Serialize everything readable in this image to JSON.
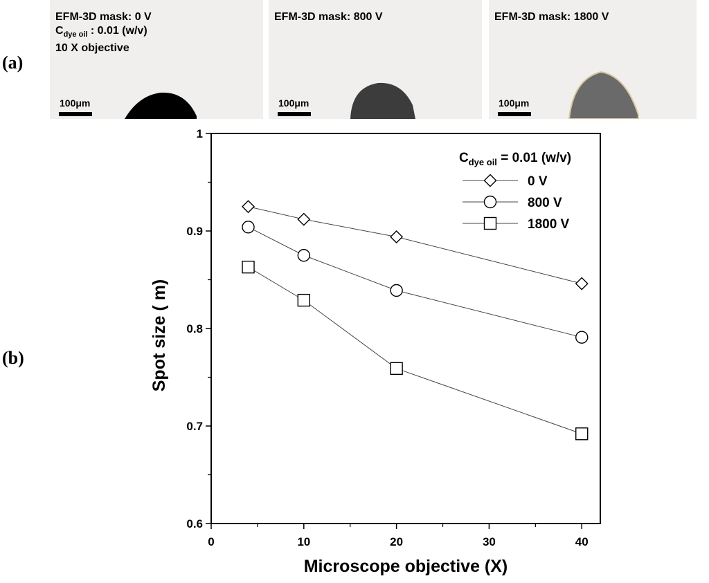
{
  "panels": {
    "a_label": "(a)",
    "b_label": "(b)"
  },
  "photos": [
    {
      "caption": "EFM-3D mask: 0 V",
      "caption_line2_main": "C",
      "caption_line2_sub": "dye oil",
      "caption_line2_rest": " : 0.01 (w/v)",
      "caption_line3": "10 X objective",
      "scale": "100μm"
    },
    {
      "caption": "EFM-3D mask: 800 V",
      "scale": "100μm"
    },
    {
      "caption": "EFM-3D mask: 1800 V",
      "scale": "100μm"
    }
  ],
  "chart_data": {
    "type": "line",
    "title": "",
    "xlabel": "Microscope objective (X)",
    "ylabel": "Spot size (   m)",
    "xlim": [
      0,
      42
    ],
    "ylim": [
      0.6,
      1.0
    ],
    "xticks": [
      "0",
      "10",
      "20",
      "30",
      "40"
    ],
    "yticks": [
      "0.6",
      "0.7",
      "0.8",
      "0.9",
      "1"
    ],
    "legend_title_main": "C",
    "legend_title_sub": "dye oil",
    "legend_title_rest": " = 0.01 (w/v)",
    "legend_position": "top-right",
    "x": [
      4,
      10,
      20,
      40
    ],
    "series": [
      {
        "name": "0 V",
        "marker": "diamond",
        "values": [
          0.925,
          0.912,
          0.894,
          0.846
        ]
      },
      {
        "name": "800 V",
        "marker": "circle",
        "values": [
          0.904,
          0.875,
          0.839,
          0.791
        ]
      },
      {
        "name": "1800 V",
        "marker": "square",
        "values": [
          0.863,
          0.829,
          0.759,
          0.692
        ]
      }
    ]
  }
}
